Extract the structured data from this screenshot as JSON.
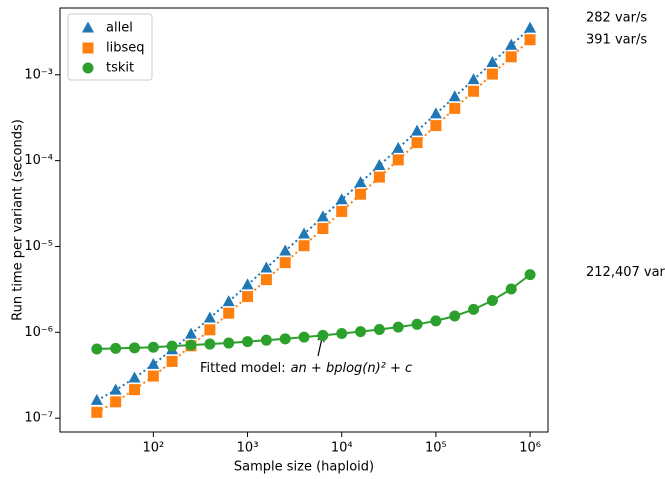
{
  "chart_data": {
    "type": "scatter",
    "xlabel": "Sample size (haploid)",
    "ylabel": "Run time per variant (seconds)",
    "log_x": true,
    "log_y": true,
    "xlim": [
      10.2,
      1550000
    ],
    "ylim": [
      6.9e-08,
      0.006
    ],
    "xticks": [
      {
        "value": 100,
        "label": "10²"
      },
      {
        "value": 1000,
        "label": "10³"
      },
      {
        "value": 10000,
        "label": "10⁴"
      },
      {
        "value": 100000,
        "label": "10⁵"
      },
      {
        "value": 1000000,
        "label": "10⁶"
      }
    ],
    "yticks": [
      {
        "value": 1e-07,
        "label": "10⁻⁷"
      },
      {
        "value": 1e-06,
        "label": "10⁻⁶"
      },
      {
        "value": 1e-05,
        "label": "10⁻⁵"
      },
      {
        "value": 0.0001,
        "label": "10⁻⁴"
      },
      {
        "value": 0.001,
        "label": "10⁻³"
      }
    ],
    "legend": "upper left",
    "x": [
      25.1,
      39.8,
      63.1,
      100,
      158,
      251,
      398,
      631,
      1000,
      1585,
      2512,
      3981,
      6310,
      10000,
      15849,
      25119,
      39811,
      63096,
      100000,
      158489,
      251189,
      398107,
      630957,
      1000000
    ],
    "series": [
      {
        "name": "allel",
        "color": "#1f77b4",
        "marker": "triangle",
        "line": "dotted",
        "rate_label": "282 var/s",
        "values": [
          1.61e-07,
          2.12e-07,
          2.94e-07,
          4.23e-07,
          6.26e-07,
          9.52e-07,
          1.47e-06,
          2.28e-06,
          3.57e-06,
          5.62e-06,
          8.86e-06,
          1.4e-05,
          2.21e-05,
          3.5e-05,
          5.55e-05,
          8.79e-05,
          0.000139,
          0.000221,
          0.00035,
          0.000555,
          0.000879,
          0.00139,
          0.00221,
          0.0035
        ]
      },
      {
        "name": "libseq",
        "color": "#ff7f0e",
        "marker": "square",
        "line": "dotted",
        "rate_label": "391 var/s",
        "values": [
          1.17e-07,
          1.55e-07,
          2.15e-07,
          3.09e-07,
          4.58e-07,
          6.96e-07,
          1.07e-06,
          1.67e-06,
          2.61e-06,
          4.11e-06,
          6.48e-06,
          1.02e-05,
          1.62e-05,
          2.56e-05,
          4.06e-05,
          6.43e-05,
          0.000102,
          0.000162,
          0.000256,
          0.000406,
          0.000643,
          0.00102,
          0.00162,
          0.00256
        ]
      },
      {
        "name": "tskit",
        "color": "#2ca02c",
        "marker": "circle",
        "line": "solid",
        "rate_label": "212,407 var/s",
        "values": [
          6.4e-07,
          6.5e-07,
          6.6e-07,
          6.7e-07,
          6.9e-07,
          7.1e-07,
          7.3e-07,
          7.5e-07,
          7.8e-07,
          8.1e-07,
          8.4e-07,
          8.8e-07,
          9.2e-07,
          9.7e-07,
          1.02e-06,
          1.08e-06,
          1.15e-06,
          1.24e-06,
          1.36e-06,
          1.55e-06,
          1.85e-06,
          2.35e-06,
          3.2e-06,
          4.7e-06
        ]
      }
    ],
    "annotation": {
      "text": "Fitted model:",
      "formula": "an + bplog(n)² + c"
    }
  }
}
